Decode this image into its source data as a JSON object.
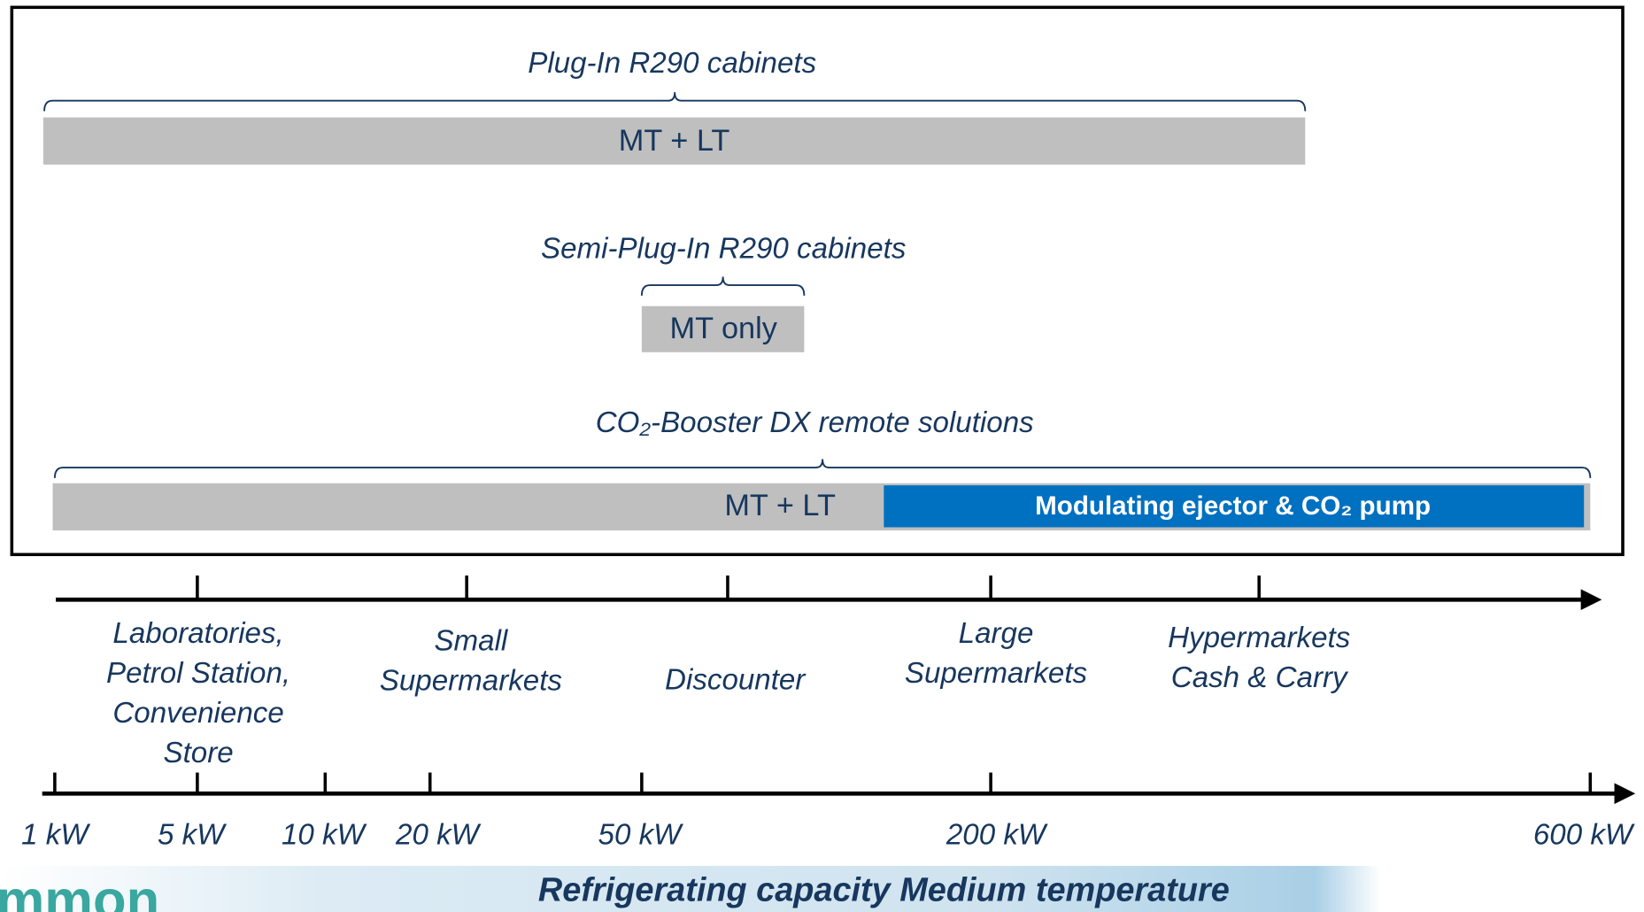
{
  "groups": [
    {
      "title": "Plug-In R290 cabinets",
      "bar": "MT + LT"
    },
    {
      "title": "Semi-Plug-In R290 cabinets",
      "bar": "MT only"
    },
    {
      "title": "CO₂-Booster DX remote solutions",
      "bar": "MT + LT",
      "highlight": "Modulating ejector & CO₂ pump"
    }
  ],
  "segments": [
    [
      "Laboratories,",
      "Petrol Station,",
      "Convenience",
      "Store"
    ],
    [
      "Small",
      "Supermarkets"
    ],
    [
      "Discounter"
    ],
    [
      "Large",
      "Supermarkets"
    ],
    [
      "Hypermarkets",
      "Cash & Carry"
    ]
  ],
  "capacity_labels": [
    "1 kW",
    "5 kW",
    "10 kW",
    "20 kW",
    "50 kW",
    "200 kW",
    "600 kW"
  ],
  "axis_title": "Refrigerating capacity Medium temperature",
  "logo": "mmon"
}
